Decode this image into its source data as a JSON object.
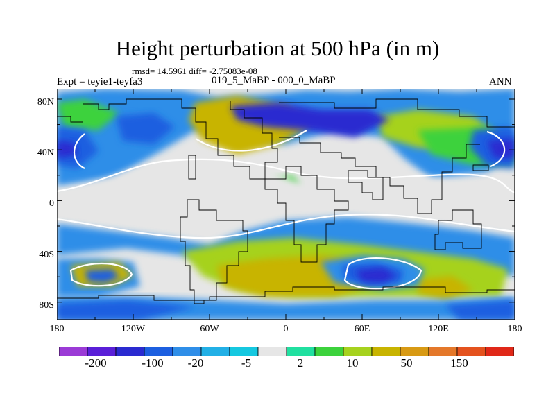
{
  "title": "Height perturbation at 500 hPa (in m)",
  "stats": "rmsd= 14.5961 diff= -2.75083e-08",
  "expt": "Expt = teyie1-teyfa3",
  "case": "019_5_MaBP - 000_0_MaBP",
  "season": "ANN",
  "lat_labels": [
    "80N",
    "40N",
    "0",
    "40S",
    "80S"
  ],
  "lon_labels": [
    "180",
    "120W",
    "60W",
    "0",
    "60E",
    "120E",
    "180"
  ],
  "colorbar": {
    "colors": [
      "#9b3bd6",
      "#5a1fd8",
      "#2a2ad0",
      "#1d5fe0",
      "#2f8ee8",
      "#22b0e6",
      "#15c8e0",
      "#e6e6e6",
      "#20e0a0",
      "#3cd23c",
      "#a6d21e",
      "#c8b400",
      "#d89a14",
      "#e4782a",
      "#e4521e",
      "#e02818"
    ],
    "labels": [
      "-200",
      "-100",
      "-20",
      "-5",
      "2",
      "10",
      "50",
      "150"
    ]
  },
  "map_palette": {
    "neutral": "#e6e6e6",
    "pale_cyan": "#15c8e0",
    "light_blue": "#2f8ee8",
    "blue": "#1d5fe0",
    "dark_blue": "#2a2ad0",
    "green": "#3cd23c",
    "teal_green": "#20e0a0",
    "yellow_green": "#a6d21e",
    "olive": "#c8b400",
    "orange": "#d89a14",
    "contour": "#ffffff"
  }
}
